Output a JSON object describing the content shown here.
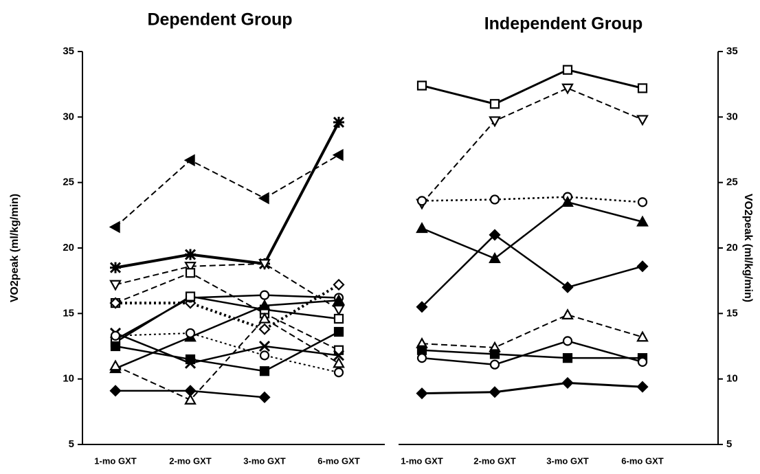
{
  "chart_data": [
    {
      "type": "line",
      "title": "Dependent Group",
      "ylabel": "VO2peak (ml/kg/min)",
      "yaxis_side": "left",
      "categories": [
        "1-mo GXT",
        "2-mo GXT",
        "3-mo GXT",
        "6-mo GXT"
      ],
      "ylim": [
        5,
        35
      ],
      "yticks": [
        5,
        10,
        15,
        20,
        25,
        30,
        35
      ],
      "color": "#000000",
      "series": [
        {
          "style": "dashed",
          "width": 2,
          "marker": "triangle-left",
          "fill": "black",
          "values": [
            21.6,
            26.7,
            23.8,
            27.1
          ]
        },
        {
          "style": "solid",
          "width": 4,
          "marker": "asterisk",
          "fill": "black",
          "values": [
            18.5,
            19.5,
            18.8,
            29.6
          ]
        },
        {
          "style": "dashed",
          "width": 2,
          "marker": "triangle-down",
          "fill": "white",
          "values": [
            17.2,
            18.6,
            18.8,
            15.3
          ]
        },
        {
          "style": "dashed",
          "width": 2,
          "marker": "square",
          "fill": "white",
          "values": [
            15.8,
            18.1,
            15.0,
            12.2
          ]
        },
        {
          "style": "dotted",
          "width": 4,
          "marker": "diamond",
          "fill": "white",
          "values": [
            15.8,
            15.8,
            13.8,
            17.2
          ]
        },
        {
          "style": "solid",
          "width": 2.5,
          "marker": "circle",
          "fill": "white",
          "values": [
            13.0,
            16.2,
            16.4,
            16.2
          ]
        },
        {
          "style": "solid",
          "width": 2.5,
          "marker": "square",
          "fill": "white",
          "values": [
            12.8,
            16.3,
            15.3,
            14.6
          ]
        },
        {
          "style": "solid",
          "width": 2.5,
          "marker": "triangle",
          "fill": "black",
          "values": [
            10.8,
            13.2,
            15.6,
            16.0
          ]
        },
        {
          "style": "solid",
          "width": 2.5,
          "marker": "x",
          "fill": "black",
          "values": [
            13.5,
            11.2,
            12.5,
            11.8
          ]
        },
        {
          "style": "dotted",
          "width": 2,
          "marker": "circle",
          "fill": "white",
          "values": [
            13.3,
            13.5,
            11.8,
            10.5
          ]
        },
        {
          "style": "dashed",
          "width": 2,
          "marker": "triangle",
          "fill": "white",
          "values": [
            11.0,
            8.4,
            14.6,
            11.2
          ]
        },
        {
          "style": "solid",
          "width": 2.5,
          "marker": "diamond",
          "fill": "black",
          "values": [
            9.1,
            9.1,
            8.6,
            null
          ]
        },
        {
          "style": "solid",
          "width": 2.5,
          "marker": "square",
          "fill": "black",
          "values": [
            12.5,
            11.5,
            10.6,
            13.6
          ]
        }
      ]
    },
    {
      "type": "line",
      "title": "Independent Group",
      "ylabel": "VO2peak (ml/kg/min)",
      "yaxis_side": "right",
      "categories": [
        "1-mo GXT",
        "2-mo GXT",
        "3-mo GXT",
        "6-mo GXT"
      ],
      "ylim": [
        5,
        35
      ],
      "yticks": [
        5,
        10,
        15,
        20,
        25,
        30,
        35
      ],
      "color": "#000000",
      "series": [
        {
          "style": "solid",
          "width": 3,
          "marker": "square",
          "fill": "white",
          "values": [
            32.4,
            31.0,
            33.6,
            32.2
          ]
        },
        {
          "style": "dashed",
          "width": 2,
          "marker": "triangle-down",
          "fill": "white",
          "values": [
            23.4,
            29.7,
            32.2,
            29.8
          ]
        },
        {
          "style": "dotted",
          "width": 2.5,
          "marker": "circle",
          "fill": "white",
          "values": [
            23.6,
            23.7,
            23.9,
            23.5
          ]
        },
        {
          "style": "solid",
          "width": 2.5,
          "marker": "triangle",
          "fill": "black",
          "values": [
            21.5,
            19.2,
            23.5,
            22.0
          ]
        },
        {
          "style": "solid",
          "width": 2.5,
          "marker": "diamond",
          "fill": "black",
          "values": [
            15.5,
            21.0,
            17.0,
            18.6
          ]
        },
        {
          "style": "dashed",
          "width": 2,
          "marker": "triangle",
          "fill": "white",
          "values": [
            12.7,
            12.4,
            14.9,
            13.2
          ]
        },
        {
          "style": "solid",
          "width": 2.5,
          "marker": "square",
          "fill": "black",
          "values": [
            12.2,
            11.9,
            11.6,
            11.6
          ]
        },
        {
          "style": "solid",
          "width": 2.5,
          "marker": "circle",
          "fill": "white",
          "values": [
            11.6,
            11.1,
            12.9,
            11.3
          ]
        },
        {
          "style": "solid",
          "width": 3,
          "marker": "diamond",
          "fill": "black",
          "values": [
            8.9,
            9.0,
            9.7,
            9.4
          ]
        }
      ]
    }
  ]
}
